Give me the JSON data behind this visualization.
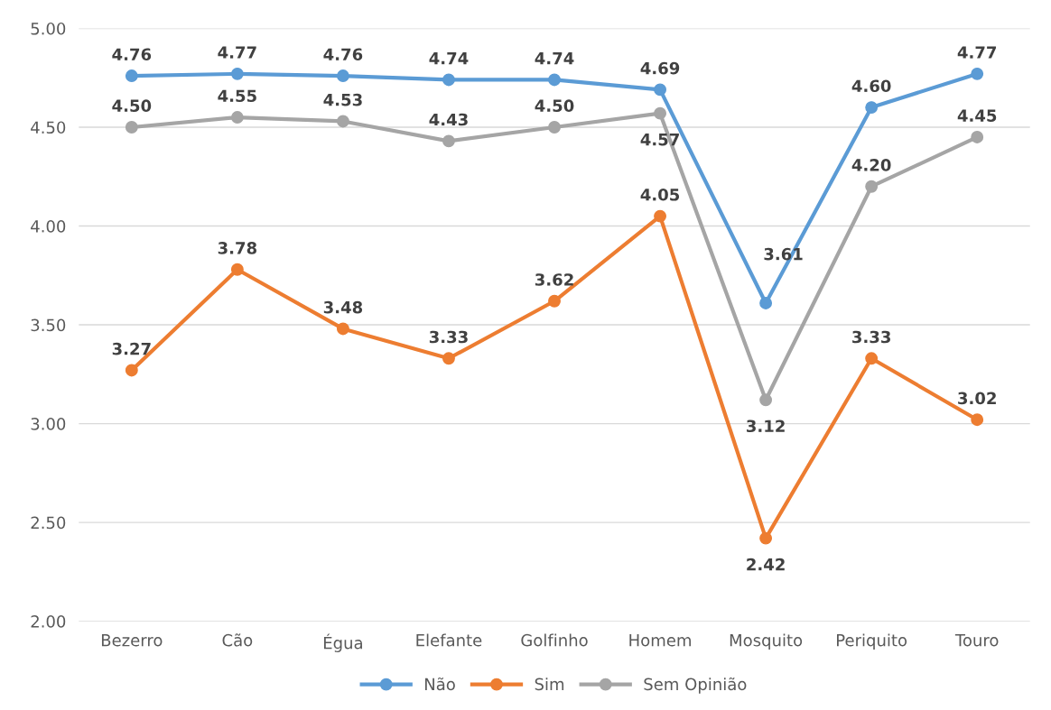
{
  "chart_data": {
    "type": "line",
    "categories": [
      "Bezerro",
      "Cão",
      "Égua",
      "Elefante",
      "Golfinho",
      "Homem",
      "Mosquito",
      "Periquito",
      "Touro"
    ],
    "series": [
      {
        "name": "Não",
        "color": "#5b9bd5",
        "values": [
          4.76,
          4.77,
          4.76,
          4.74,
          4.74,
          4.69,
          3.61,
          4.6,
          4.77
        ],
        "value_labels": [
          "4.76",
          "4.77",
          "4.76",
          "4.74",
          "4.74",
          "4.69",
          "3.61",
          "4.60",
          "4.77"
        ]
      },
      {
        "name": "Sim",
        "color": "#ed7d31",
        "values": [
          3.27,
          3.78,
          3.48,
          3.33,
          3.62,
          4.05,
          2.42,
          3.33,
          3.02
        ],
        "value_labels": [
          "3.27",
          "3.78",
          "3.48",
          "3.33",
          "3.62",
          "4.05",
          "2.42",
          "3.33",
          "3.02"
        ]
      },
      {
        "name": "Sem Opinião",
        "color": "#a5a5a5",
        "values": [
          4.5,
          4.55,
          4.53,
          4.43,
          4.5,
          4.57,
          3.12,
          4.2,
          4.45
        ],
        "value_labels": [
          "4.50",
          "4.55",
          "4.53",
          "4.43",
          "4.50",
          "4.57",
          "3.12",
          "4.20",
          "4.45"
        ]
      }
    ],
    "ylim": [
      2.0,
      5.0
    ],
    "yticks": [
      {
        "value": 2.0,
        "label": "2.00"
      },
      {
        "value": 2.5,
        "label": "2.50"
      },
      {
        "value": 3.0,
        "label": "3.00"
      },
      {
        "value": 3.5,
        "label": "3.50"
      },
      {
        "value": 4.0,
        "label": "4.00"
      },
      {
        "value": 4.5,
        "label": "4.50"
      },
      {
        "value": 5.0,
        "label": "5.00"
      }
    ],
    "grid": "y",
    "legend": "bottom",
    "marker": "circle",
    "line_style": "solid"
  }
}
